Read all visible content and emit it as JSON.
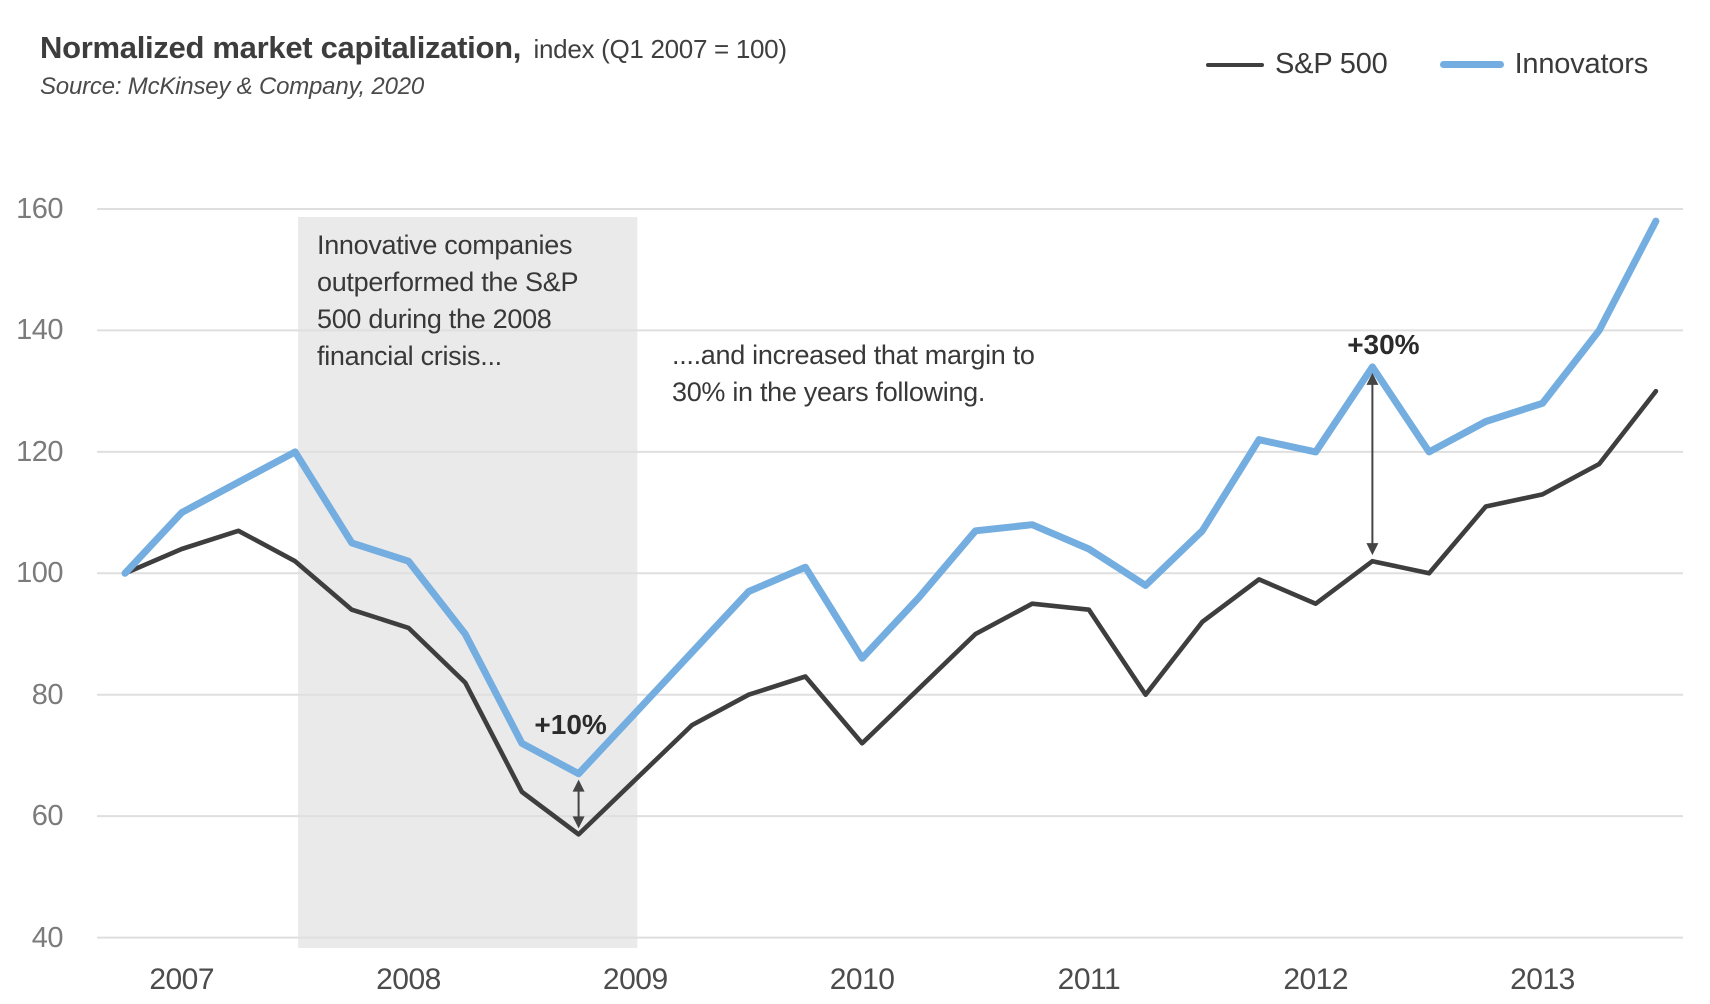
{
  "header": {
    "title": "Normalized market capitalization,",
    "subtitle": "index (Q1 2007 = 100)",
    "source": "Source: McKinsey & Company, 2020"
  },
  "legend": [
    {
      "label": "S&P 500",
      "color": "#3F3F3F"
    },
    {
      "label": "Innovators",
      "color": "#74ADDF"
    }
  ],
  "annotations": {
    "box_text": "Innovative companies outperformed the S&P 500 during the 2008 financial crisis...",
    "margin_text": "....and increased that margin to 30% in the years following.",
    "deltas": [
      {
        "label": "+10%",
        "at": "2009 Q1",
        "quarter_index": 8
      },
      {
        "label": "+30%",
        "at": "2012 Q3",
        "quarter_index": 22
      }
    ]
  },
  "colors": {
    "innovators": "#74ADDF",
    "sp500": "#3E3E3E",
    "gridline": "#DFDFDF",
    "highlight_box": "#EAEAEA",
    "arrow": "#454545",
    "axis_label": "#7B7B7B",
    "year_label": "#4C4C4C"
  },
  "chart_data": {
    "type": "line",
    "title": "Normalized market capitalization, index (Q1 2007 = 100)",
    "x_unit": "quarter",
    "categories": [
      "2007 Q1",
      "2007 Q2",
      "2007 Q3",
      "2007 Q4",
      "2008 Q1",
      "2008 Q2",
      "2008 Q3",
      "2008 Q4",
      "2009 Q1",
      "2009 Q2",
      "2009 Q3",
      "2009 Q4",
      "2010 Q1",
      "2010 Q2",
      "2010 Q3",
      "2010 Q4",
      "2011 Q1",
      "2011 Q2",
      "2011 Q3",
      "2011 Q4",
      "2012 Q1",
      "2012 Q2",
      "2012 Q3",
      "2012 Q4",
      "2013 Q1",
      "2013 Q2",
      "2013 Q3",
      "2013 Q4"
    ],
    "series": [
      {
        "name": "S&P 500",
        "values": [
          100,
          104,
          107,
          102,
          94,
          91,
          82,
          64,
          57,
          66,
          75,
          80,
          83,
          72,
          81,
          90,
          95,
          94,
          80,
          92,
          99,
          95,
          102,
          100,
          111,
          113,
          118,
          130
        ]
      },
      {
        "name": "Innovators",
        "values": [
          100,
          110,
          115,
          120,
          105,
          102,
          90,
          72,
          67,
          77,
          87,
          97,
          101,
          86,
          96,
          107,
          108,
          104,
          98,
          107,
          122,
          120,
          134,
          120,
          125,
          128,
          140,
          158
        ]
      }
    ],
    "ylim": [
      40,
      160
    ],
    "yticks": [
      160,
      140,
      120,
      100,
      80,
      60,
      40
    ],
    "year_labels": [
      "2007",
      "2008",
      "2009",
      "2010",
      "2011",
      "2012",
      "2013"
    ],
    "grid": "horizontal",
    "legend_position": "top-right",
    "highlight_region": {
      "from": "2007 Q4",
      "to": "2009 Q2",
      "from_index": 3,
      "to_index": 9
    }
  }
}
